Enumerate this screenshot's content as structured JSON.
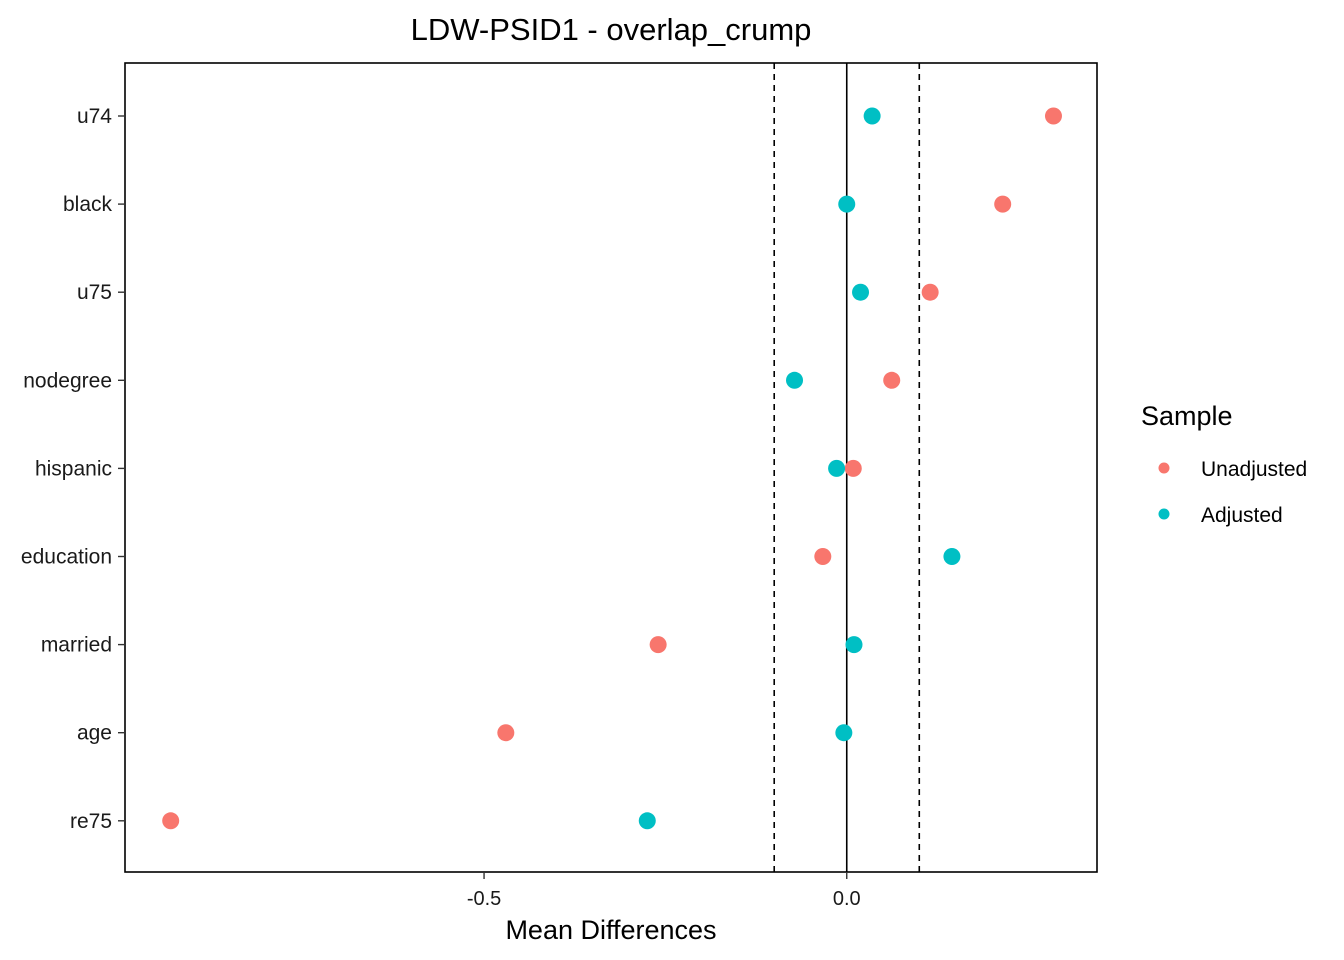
{
  "chart_data": {
    "type": "scatter",
    "title": "LDW-PSID1 - overlap_crump",
    "xlabel": "Mean Differences",
    "ylabel": "",
    "xlim": [
      -0.995,
      0.345
    ],
    "x_ticks": [
      -0.5,
      0.0
    ],
    "x_tick_labels": [
      "-0.5",
      "0.0"
    ],
    "threshold_lines": [
      -0.1,
      0.1
    ],
    "zero_line": 0,
    "categories": [
      "u74",
      "black",
      "u75",
      "nodegree",
      "hispanic",
      "education",
      "married",
      "age",
      "re75"
    ],
    "series": [
      {
        "name": "Unadjusted",
        "color": "#F8766D",
        "values": [
          0.285,
          0.215,
          0.115,
          0.062,
          0.009,
          -0.033,
          -0.26,
          -0.47,
          -0.932
        ]
      },
      {
        "name": "Adjusted",
        "color": "#00BFC4",
        "values": [
          0.035,
          0.0,
          0.019,
          -0.072,
          -0.014,
          0.145,
          0.01,
          -0.004,
          -0.275
        ]
      }
    ],
    "legend": {
      "title": "Sample",
      "position": "right"
    },
    "grid": false
  }
}
